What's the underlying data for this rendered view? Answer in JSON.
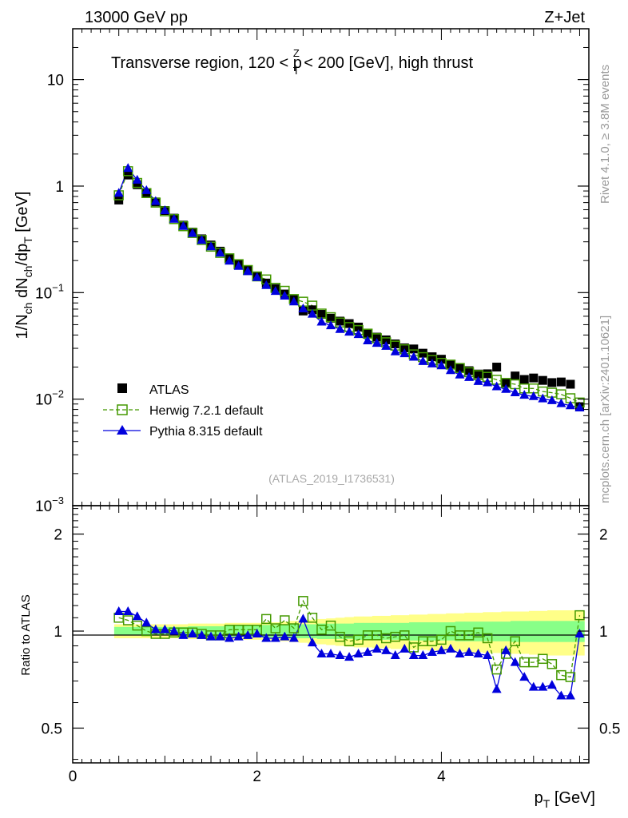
{
  "header": {
    "energy_label": "13000 GeV pp",
    "process_label": "Z+Jet",
    "side_label_top": "Rivet 4.1.0, ≥ 3.8M events",
    "side_label_bottom": "mcplots.cern.ch [arXiv:2401.10621]",
    "watermark": "(ATLAS_2019_I1736531)"
  },
  "chart_data": [
    {
      "type": "scatter",
      "panel": "main",
      "title_parts": [
        "Transverse region, 120 < p",
        "Z",
        "T",
        " < 200 [GeV], high thrust"
      ],
      "ylabel_parts": [
        "1/N",
        "ch",
        " dN",
        "ch",
        "/dp",
        "T",
        " [GeV]"
      ],
      "yscale": "log",
      "xlim": [
        0,
        5.6
      ],
      "ylim": [
        0.001,
        30
      ],
      "yticks": [
        {
          "value": 10,
          "base": "10",
          "exp": ""
        },
        {
          "value": 1,
          "base": "1",
          "exp": ""
        },
        {
          "value": 0.1,
          "base": "10",
          "exp": "−1"
        },
        {
          "value": 0.01,
          "base": "10",
          "exp": "−2"
        },
        {
          "value": 0.001,
          "base": "10",
          "exp": "−3"
        }
      ],
      "x": [
        0.5,
        0.6,
        0.7,
        0.8,
        0.9,
        1.0,
        1.1,
        1.2,
        1.3,
        1.4,
        1.5,
        1.6,
        1.7,
        1.8,
        1.9,
        2.0,
        2.1,
        2.2,
        2.3,
        2.4,
        2.5,
        2.6,
        2.7,
        2.8,
        2.9,
        3.0,
        3.1,
        3.2,
        3.3,
        3.4,
        3.5,
        3.6,
        3.7,
        3.8,
        3.9,
        4.0,
        4.1,
        4.2,
        4.3,
        4.4,
        4.5,
        4.6,
        4.7,
        4.8,
        4.9,
        5.0,
        5.1,
        5.2,
        5.3,
        5.4,
        5.5
      ],
      "series": [
        {
          "name": "ATLAS",
          "style": "data",
          "color": "#000000",
          "values": [
            0.74,
            1.27,
            1.03,
            0.86,
            0.71,
            0.59,
            0.5,
            0.43,
            0.37,
            0.32,
            0.28,
            0.245,
            0.21,
            0.185,
            0.162,
            0.141,
            0.123,
            0.109,
            0.097,
            0.086,
            0.0672,
            0.069,
            0.0625,
            0.0575,
            0.054,
            0.0512,
            0.0475,
            0.041,
            0.0382,
            0.036,
            0.033,
            0.0303,
            0.0296,
            0.027,
            0.025,
            0.0237,
            0.0212,
            0.0198,
            0.0185,
            0.0172,
            0.0173,
            0.02,
            0.0143,
            0.0165,
            0.0153,
            0.0158,
            0.015,
            0.0143,
            0.0145,
            0.0138,
            0.0085
          ]
        },
        {
          "name": "Herwig 7.2.1 default",
          "style": "open-square-dashed",
          "color": "#449900",
          "values": [
            0.82,
            1.38,
            1.07,
            0.86,
            0.7,
            0.58,
            0.49,
            0.42,
            0.363,
            0.312,
            0.27,
            0.236,
            0.21,
            0.185,
            0.163,
            0.142,
            0.133,
            0.111,
            0.104,
            0.087,
            0.0822,
            0.0755,
            0.0636,
            0.0588,
            0.0524,
            0.0475,
            0.0445,
            0.0412,
            0.0373,
            0.0342,
            0.0318,
            0.0294,
            0.0263,
            0.0248,
            0.0233,
            0.0219,
            0.0211,
            0.0196,
            0.0179,
            0.0168,
            0.0162,
            0.0152,
            0.0142,
            0.0138,
            0.0126,
            0.0126,
            0.0118,
            0.0115,
            0.0111,
            0.0102,
            0.0093
          ]
        },
        {
          "name": "Pythia 8.315 default",
          "style": "filled-triangle-solid",
          "color": "#0000dd",
          "values": [
            0.86,
            1.47,
            1.14,
            0.91,
            0.72,
            0.59,
            0.49,
            0.42,
            0.36,
            0.31,
            0.27,
            0.236,
            0.198,
            0.177,
            0.158,
            0.139,
            0.117,
            0.103,
            0.093,
            0.082,
            0.0706,
            0.063,
            0.0531,
            0.049,
            0.0452,
            0.0427,
            0.0405,
            0.0354,
            0.0335,
            0.0314,
            0.0279,
            0.0268,
            0.0248,
            0.0226,
            0.0215,
            0.0206,
            0.0186,
            0.0169,
            0.016,
            0.0147,
            0.0143,
            0.0131,
            0.0124,
            0.0115,
            0.0109,
            0.0106,
            0.0101,
            0.0097,
            0.0091,
            0.0087,
            0.0083
          ]
        }
      ],
      "legend": {
        "position": "bottom-left",
        "entries": [
          "ATLAS",
          "Herwig 7.2.1 default",
          "Pythia 8.315 default"
        ]
      }
    },
    {
      "type": "scatter",
      "panel": "ratio",
      "ylabel": "Ratio to ATLAS",
      "xlabel_parts": [
        "p",
        "T",
        " [GeV]"
      ],
      "xlim": [
        0,
        5.6
      ],
      "ylim": [
        0.39,
        2.45
      ],
      "yscale": "log",
      "yticks": [
        {
          "value": 2,
          "label": "2"
        },
        {
          "value": 1,
          "label": "1"
        },
        {
          "value": 0.5,
          "label": "0.5"
        }
      ],
      "xticks": [
        {
          "value": 0,
          "label": "0"
        },
        {
          "value": 2,
          "label": "2"
        },
        {
          "value": 4,
          "label": "4"
        }
      ],
      "x": [
        0.5,
        0.6,
        0.7,
        0.8,
        0.9,
        1.0,
        1.1,
        1.2,
        1.3,
        1.4,
        1.5,
        1.6,
        1.7,
        1.8,
        1.9,
        2.0,
        2.1,
        2.2,
        2.3,
        2.4,
        2.5,
        2.6,
        2.7,
        2.8,
        2.9,
        3.0,
        3.1,
        3.2,
        3.3,
        3.4,
        3.5,
        3.6,
        3.7,
        3.8,
        3.9,
        4.0,
        4.1,
        4.2,
        4.3,
        4.4,
        4.5,
        4.6,
        4.7,
        4.8,
        4.9,
        5.0,
        5.1,
        5.2,
        5.3,
        5.4,
        5.5
      ],
      "bands": {
        "inner_color": "#88ff88",
        "outer_color": "#ffff88",
        "inner_halfwidth": [
          0.03,
          0.03,
          0.03,
          0.03,
          0.03,
          0.03,
          0.03,
          0.03,
          0.035,
          0.035,
          0.035,
          0.035,
          0.04,
          0.04,
          0.04,
          0.04,
          0.045,
          0.045,
          0.045,
          0.05,
          0.05,
          0.05,
          0.055,
          0.055,
          0.055,
          0.055,
          0.06,
          0.06,
          0.06,
          0.06,
          0.06,
          0.06,
          0.065,
          0.065,
          0.065,
          0.065,
          0.065,
          0.07,
          0.07,
          0.07,
          0.07,
          0.07,
          0.07,
          0.075,
          0.075,
          0.075,
          0.075,
          0.075,
          0.075,
          0.075,
          0.075
        ],
        "outer_halfwidth": [
          0.05,
          0.05,
          0.05,
          0.05,
          0.05,
          0.05,
          0.05,
          0.05,
          0.055,
          0.055,
          0.055,
          0.055,
          0.06,
          0.06,
          0.06,
          0.06,
          0.065,
          0.065,
          0.07,
          0.075,
          0.08,
          0.085,
          0.09,
          0.095,
          0.1,
          0.105,
          0.11,
          0.11,
          0.115,
          0.115,
          0.12,
          0.12,
          0.125,
          0.125,
          0.13,
          0.13,
          0.135,
          0.135,
          0.14,
          0.14,
          0.145,
          0.145,
          0.15,
          0.15,
          0.15,
          0.155,
          0.155,
          0.16,
          0.16,
          0.16,
          0.16
        ]
      },
      "series": [
        {
          "name": "Herwig 7.2.1 default",
          "style": "open-square-dashed",
          "color": "#449900",
          "values": [
            1.1,
            1.08,
            1.04,
            1.0,
            0.98,
            0.98,
            0.99,
            0.99,
            0.99,
            0.98,
            0.97,
            0.97,
            1.01,
            1.01,
            1.01,
            1.01,
            1.09,
            1.02,
            1.08,
            1.02,
            1.24,
            1.1,
            1.01,
            1.04,
            0.96,
            0.93,
            0.94,
            0.97,
            0.97,
            0.95,
            0.96,
            0.97,
            0.89,
            0.93,
            0.93,
            0.94,
            1.0,
            0.97,
            0.97,
            0.99,
            0.95,
            0.76,
            0.85,
            0.93,
            0.8,
            0.8,
            0.82,
            0.79,
            0.73,
            0.72,
            1.12
          ]
        },
        {
          "name": "Pythia 8.315 default",
          "style": "filled-triangle-solid",
          "color": "#0000dd",
          "values": [
            1.15,
            1.15,
            1.11,
            1.06,
            1.01,
            1.01,
            1.0,
            0.97,
            0.98,
            0.97,
            0.96,
            0.96,
            0.95,
            0.96,
            0.97,
            0.98,
            0.95,
            0.95,
            0.96,
            0.95,
            1.09,
            0.92,
            0.85,
            0.85,
            0.84,
            0.83,
            0.85,
            0.86,
            0.88,
            0.87,
            0.84,
            0.88,
            0.84,
            0.84,
            0.86,
            0.87,
            0.88,
            0.85,
            0.86,
            0.85,
            0.84,
            0.66,
            0.87,
            0.8,
            0.72,
            0.67,
            0.67,
            0.68,
            0.63,
            0.63,
            0.98
          ]
        }
      ]
    }
  ]
}
